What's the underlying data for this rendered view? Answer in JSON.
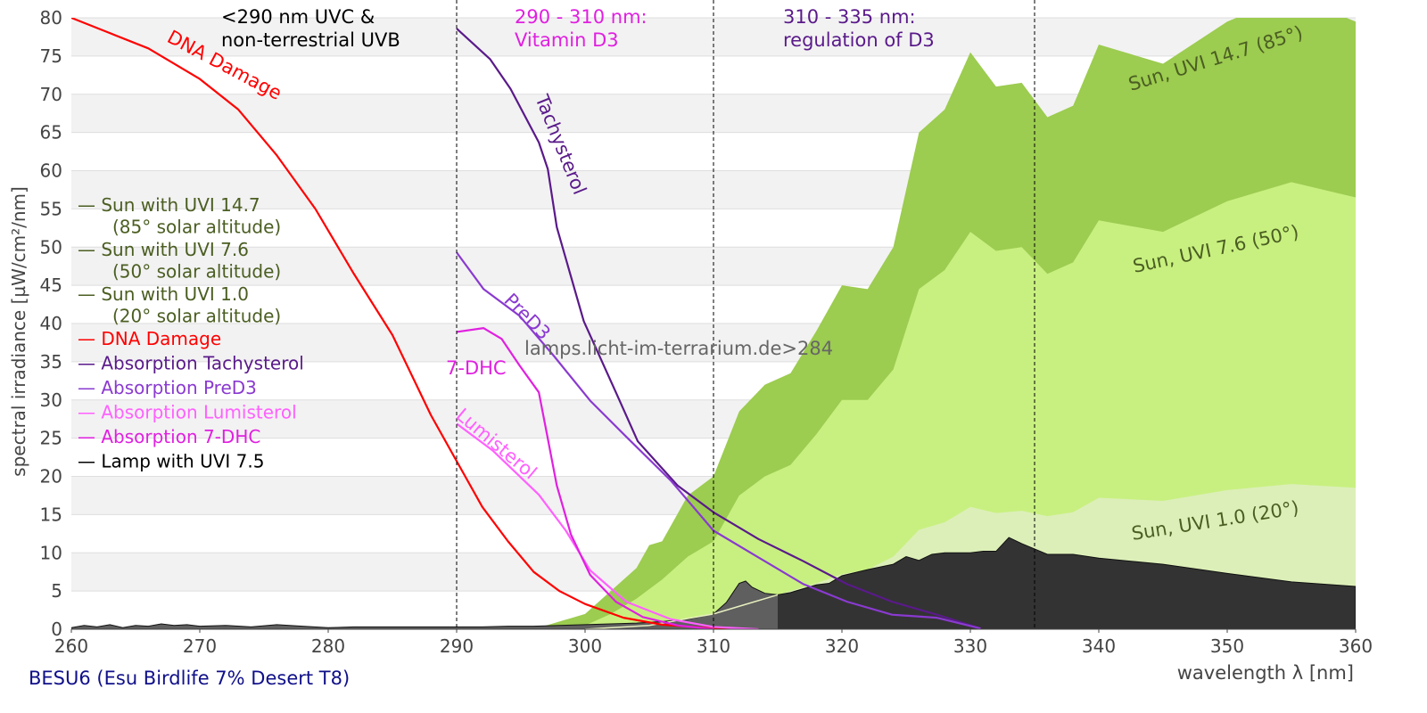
{
  "chart_data": {
    "type": "area",
    "subtitle": "BESU6 (Esu Birdlife 7% Desert T8)",
    "xlabel": "wavelength λ [nm]",
    "ylabel": "spectral irradiance [µW/cm²/nm]",
    "xlim": [
      260,
      360
    ],
    "ylim": [
      0,
      80
    ],
    "xticks": [
      260,
      270,
      280,
      290,
      300,
      310,
      320,
      330,
      340,
      350,
      360
    ],
    "yticks": [
      0,
      5,
      10,
      15,
      20,
      25,
      30,
      35,
      40,
      45,
      50,
      55,
      60,
      65,
      70,
      75,
      80
    ],
    "grid": true,
    "watermark": "lamps.licht-im-terrarium.de>284",
    "vlines": [
      290,
      310,
      335
    ],
    "annotations": [
      {
        "lines": [
          "<290 nm UVC &",
          "non-terrestrial UVB"
        ],
        "color": "#000000"
      },
      {
        "lines": [
          "290 - 310 nm:",
          "Vitamin D3"
        ],
        "color": "#e020e0"
      },
      {
        "lines": [
          "310 - 335 nm:",
          "regulation of D3"
        ],
        "color": "#5a1a8a"
      }
    ],
    "legend_position": "left",
    "legend": [
      {
        "label": "— Sun with UVI 14.7",
        "sub": "(85° solar altitude)",
        "color": "#4b5e22"
      },
      {
        "label": "— Sun with UVI 7.6",
        "sub": "(50° solar altitude)",
        "color": "#4b5e22"
      },
      {
        "label": "— Sun with UVI 1.0",
        "sub": "(20° solar altitude)",
        "color": "#4b5e22"
      },
      {
        "label": "— DNA Damage",
        "color": "#ff0000"
      },
      {
        "label": "— Absorption Tachysterol",
        "color": "#5a1a8a"
      },
      {
        "label": "— Absorption PreD3",
        "color": "#8a3ad0"
      },
      {
        "label": "— Absorption Lumisterol",
        "color": "#ff60ff"
      },
      {
        "label": "— Absorption 7-DHC",
        "color": "#e020e0"
      },
      {
        "label": "— Lamp with UVI 7.5",
        "color": "#000000"
      }
    ],
    "areas": [
      {
        "name": "Sun, UVI 14.7 (85°)",
        "color": "#9ccc50",
        "label_color": "#4b5e22",
        "x": [
          296,
          298,
          300,
          302,
          304,
          305,
          306,
          308,
          310,
          312,
          314,
          316,
          318,
          320,
          322,
          324,
          326,
          328,
          330,
          332,
          334,
          336,
          338,
          340,
          345,
          350,
          355,
          360
        ],
        "y": [
          0,
          1,
          2,
          5,
          8,
          11,
          11.5,
          17.5,
          20,
          28.5,
          32,
          33.5,
          39,
          45,
          44.5,
          50,
          65,
          68,
          75.5,
          71,
          71.5,
          67,
          68.5,
          76.5,
          74,
          79.5,
          83,
          79.5
        ]
      },
      {
        "name": "Sun, UVI 7.6 (50°)",
        "color": "#c8f080",
        "label_color": "#4b5e22",
        "x": [
          297,
          300,
          302,
          304,
          306,
          308,
          310,
          312,
          314,
          316,
          318,
          320,
          322,
          324,
          326,
          328,
          330,
          332,
          334,
          336,
          338,
          340,
          345,
          350,
          355,
          360
        ],
        "y": [
          0,
          0.5,
          2,
          4,
          6.5,
          9.5,
          11.5,
          17.5,
          20,
          21.5,
          25.5,
          30,
          30,
          34,
          44.5,
          47,
          52,
          49.5,
          50,
          46.5,
          48,
          53.5,
          52,
          56,
          58.5,
          56.5
        ]
      },
      {
        "name": "Sun, UVI 1.0 (20°)",
        "color": "#dcefb8",
        "label_color": "#4b5e22",
        "x": [
          300,
          305,
          310,
          312,
          315,
          318,
          320,
          322,
          324,
          326,
          328,
          330,
          332,
          334,
          336,
          338,
          340,
          345,
          350,
          355,
          360
        ],
        "y": [
          0,
          0.5,
          2,
          3,
          4.5,
          6,
          7.2,
          7.8,
          9.5,
          13,
          14,
          16,
          15.2,
          15.5,
          14.8,
          15.3,
          17.2,
          16.8,
          18.2,
          19,
          18.5
        ]
      },
      {
        "name": "Lamp with UVI 7.5",
        "color": "#333333",
        "x": [
          260,
          261,
          262,
          263,
          264,
          265,
          266,
          267,
          268,
          269,
          270,
          272,
          274,
          276,
          278,
          280,
          282,
          284,
          286,
          288,
          290,
          292,
          294,
          296,
          298,
          300,
          302,
          304,
          306,
          308,
          310,
          311,
          312,
          312.5,
          313,
          314,
          315,
          316,
          318,
          319,
          320,
          322,
          324,
          325,
          326,
          327,
          328,
          330,
          331,
          332,
          333,
          334,
          335,
          336,
          338,
          340,
          345,
          350,
          355,
          360
        ],
        "y": [
          0.2,
          0.5,
          0.3,
          0.6,
          0.2,
          0.5,
          0.4,
          0.7,
          0.5,
          0.6,
          0.4,
          0.5,
          0.3,
          0.6,
          0.4,
          0.2,
          0.3,
          0.3,
          0.3,
          0.3,
          0.3,
          0.3,
          0.4,
          0.4,
          0.5,
          0.6,
          0.7,
          0.8,
          1,
          1.3,
          2,
          3.5,
          6,
          6.3,
          5.5,
          4.7,
          4.5,
          4.8,
          5.8,
          6,
          7,
          7.8,
          8.5,
          9.5,
          9,
          9.8,
          10,
          10,
          10.2,
          10.2,
          12,
          11.2,
          10.5,
          9.8,
          9.8,
          9.3,
          8.5,
          7.3,
          6.2,
          5.6
        ]
      }
    ],
    "lines": [
      {
        "name": "DNA Damage",
        "color": "#ff0000",
        "x": [
          260,
          263,
          266,
          270,
          273,
          276,
          279,
          282,
          285,
          288,
          290,
          292,
          294,
          296,
          298,
          300,
          303,
          306,
          310,
          313
        ],
        "y": [
          80,
          78,
          76,
          72,
          68,
          62,
          55,
          46.5,
          38.5,
          28,
          22,
          16,
          11.5,
          7.5,
          5,
          3.3,
          1.5,
          0.6,
          0.1,
          0
        ]
      },
      {
        "name": "Tachysterol",
        "color": "#5a1a8a",
        "x": [
          290,
          292.6,
          294.2,
          296.4,
          297.1,
          297.8,
          299.9,
          302.4,
          304.1,
          307.2,
          310,
          313.5,
          317,
          320.4,
          323.9,
          327.4,
          330.8
        ],
        "y": [
          78.6,
          74.6,
          70.7,
          63.7,
          60.2,
          52.6,
          40.3,
          31,
          24.6,
          18.8,
          15.3,
          11.8,
          8.9,
          5.9,
          3.6,
          1.9,
          0.1
        ]
      },
      {
        "name": "PreD3",
        "color": "#8a3ad0",
        "x": [
          290,
          292.1,
          294.9,
          297.6,
          300.4,
          303.2,
          306.7,
          310,
          313.5,
          317,
          320.4,
          323.9,
          327.4,
          330.8
        ],
        "y": [
          49.3,
          44.5,
          41,
          35.7,
          29.9,
          25.2,
          19.4,
          12.9,
          9.4,
          5.9,
          3.6,
          1.9,
          1.5,
          0.1
        ]
      },
      {
        "name": "Lumisterol",
        "color": "#ff60ff",
        "x": [
          290,
          292.8,
          296.4,
          298.5,
          300.4,
          303.2,
          306.7,
          310,
          313.5
        ],
        "y": [
          26.9,
          23.4,
          17.6,
          12.9,
          7.7,
          3.6,
          1.3,
          0.3,
          0
        ]
      },
      {
        "name": "7-DHC",
        "color": "#e020e0",
        "x": [
          290,
          292.1,
          293.5,
          294.9,
          296.4,
          297,
          297.8,
          298.9,
          300.4,
          302.4,
          304.5,
          307.2,
          310
        ],
        "y": [
          38.9,
          39.4,
          38,
          34.5,
          31,
          25.8,
          18.8,
          12.4,
          7.1,
          3.6,
          1.6,
          0.5,
          0
        ]
      }
    ]
  }
}
